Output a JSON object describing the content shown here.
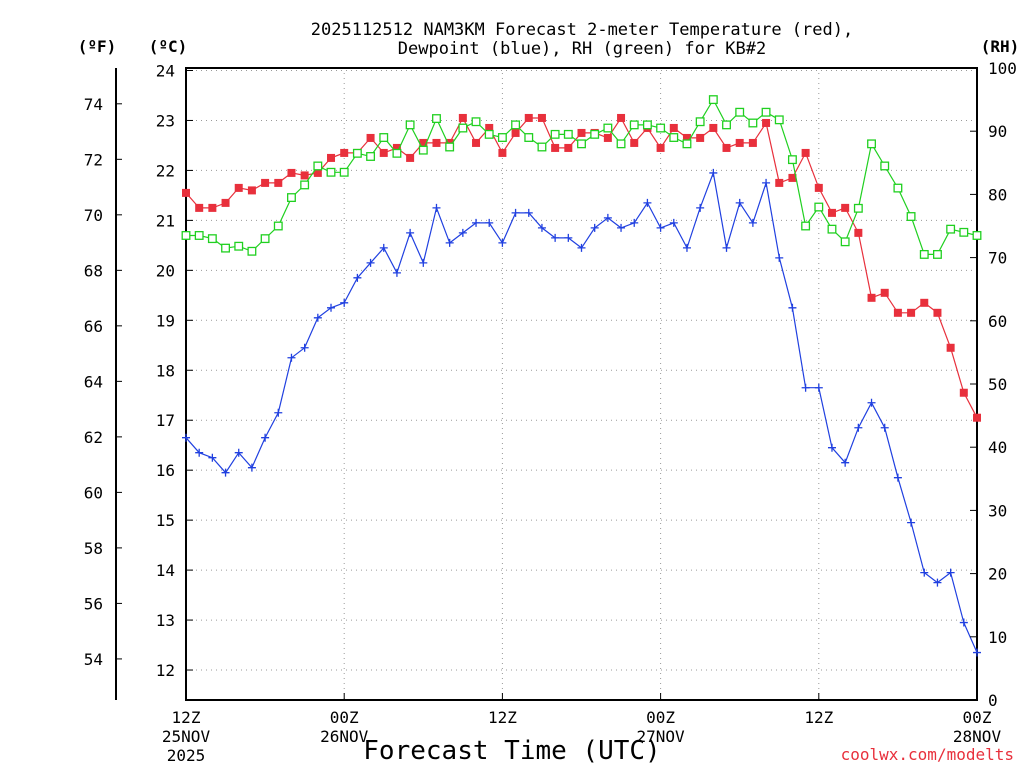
{
  "chart_data": {
    "type": "line",
    "title_line1": "2025112512 NAM3KM Forecast 2-meter Temperature (red),",
    "title_line2": "Dewpoint (blue), RH (green) for KB#2",
    "xlabel": "Forecast Time (UTC)",
    "credit": "coolwx.com/modelts",
    "units": {
      "fahrenheit": "(ºF)",
      "celsius": "(ºC)",
      "rh": "(RH)"
    },
    "fahrenheit_ticks": [
      "54",
      "56",
      "58",
      "60",
      "62",
      "64",
      "66",
      "68",
      "70",
      "72",
      "74"
    ],
    "celsius_ticks": [
      "12",
      "13",
      "14",
      "15",
      "16",
      "17",
      "18",
      "19",
      "20",
      "21",
      "22",
      "23",
      "24"
    ],
    "rh_ticks": [
      "0",
      "10",
      "20",
      "30",
      "40",
      "50",
      "60",
      "70",
      "80",
      "90",
      "100"
    ],
    "celsius_range": [
      11.4,
      24.05
    ],
    "rh_range": [
      0,
      100
    ],
    "x_range_hours": [
      0,
      60
    ],
    "x_ticks": [
      {
        "hour": 0,
        "line1": "12Z",
        "line2": "25NOV",
        "line3": "2025"
      },
      {
        "hour": 12,
        "line1": "00Z",
        "line2": "26NOV",
        "line3": ""
      },
      {
        "hour": 24,
        "line1": "12Z",
        "line2": "",
        "line3": ""
      },
      {
        "hour": 36,
        "line1": "00Z",
        "line2": "27NOV",
        "line3": ""
      },
      {
        "hour": 48,
        "line1": "12Z",
        "line2": "",
        "line3": ""
      },
      {
        "hour": 60,
        "line1": "00Z",
        "line2": "28NOV",
        "line3": ""
      }
    ],
    "series": [
      {
        "name": "Temperature",
        "axis": "celsius",
        "color": "#e8303c",
        "marker": "filled-square",
        "values": [
          21.55,
          21.25,
          21.25,
          21.35,
          21.65,
          21.6,
          21.75,
          21.75,
          21.95,
          21.9,
          21.95,
          22.25,
          22.35,
          22.35,
          22.65,
          22.35,
          22.45,
          22.25,
          22.55,
          22.55,
          22.55,
          23.05,
          22.55,
          22.85,
          22.35,
          22.75,
          23.05,
          23.05,
          22.45,
          22.45,
          22.75,
          22.75,
          22.65,
          23.05,
          22.55,
          22.85,
          22.45,
          22.85,
          22.65,
          22.65,
          22.85,
          22.45,
          22.55,
          22.55,
          22.95,
          21.75,
          21.85,
          22.35,
          21.65,
          21.15,
          21.25,
          20.75,
          19.45,
          19.55,
          19.15,
          19.15,
          19.35,
          19.15,
          18.45,
          17.55,
          17.05
        ]
      },
      {
        "name": "Dewpoint",
        "axis": "celsius",
        "color": "#2040e0",
        "marker": "plus",
        "values": [
          16.65,
          16.35,
          16.25,
          15.95,
          16.35,
          16.05,
          16.65,
          17.15,
          18.25,
          18.45,
          19.05,
          19.25,
          19.35,
          19.85,
          20.15,
          20.45,
          19.95,
          20.75,
          20.15,
          21.25,
          20.55,
          20.75,
          20.95,
          20.95,
          20.55,
          21.15,
          21.15,
          20.85,
          20.65,
          20.65,
          20.45,
          20.85,
          21.05,
          20.85,
          20.95,
          21.35,
          20.85,
          20.95,
          20.45,
          21.25,
          21.95,
          20.45,
          21.35,
          20.95,
          21.75,
          20.25,
          19.25,
          17.65,
          17.65,
          16.45,
          16.15,
          16.85,
          17.35,
          16.85,
          15.85,
          14.95,
          13.95,
          13.75,
          13.95,
          12.95,
          12.35
        ]
      },
      {
        "name": "RH",
        "axis": "rh",
        "color": "#20d020",
        "marker": "open-square",
        "values": [
          73.5,
          73.5,
          73,
          71.5,
          71.8,
          71,
          73,
          75,
          79.5,
          81.5,
          84.5,
          83.5,
          83.5,
          86.5,
          86,
          89,
          86.5,
          91,
          87,
          92,
          87.5,
          90.5,
          91.5,
          89.5,
          89,
          91,
          89,
          87.5,
          89.5,
          89.5,
          88,
          89.5,
          90.5,
          88,
          91,
          91,
          90.5,
          89,
          88,
          91.5,
          95,
          91,
          93,
          91.3,
          93,
          91.8,
          85.5,
          75,
          78,
          74.5,
          72.5,
          77.8,
          88,
          84.5,
          81,
          76.5,
          70.5,
          70.5,
          74.5,
          74,
          73.5
        ]
      }
    ]
  }
}
